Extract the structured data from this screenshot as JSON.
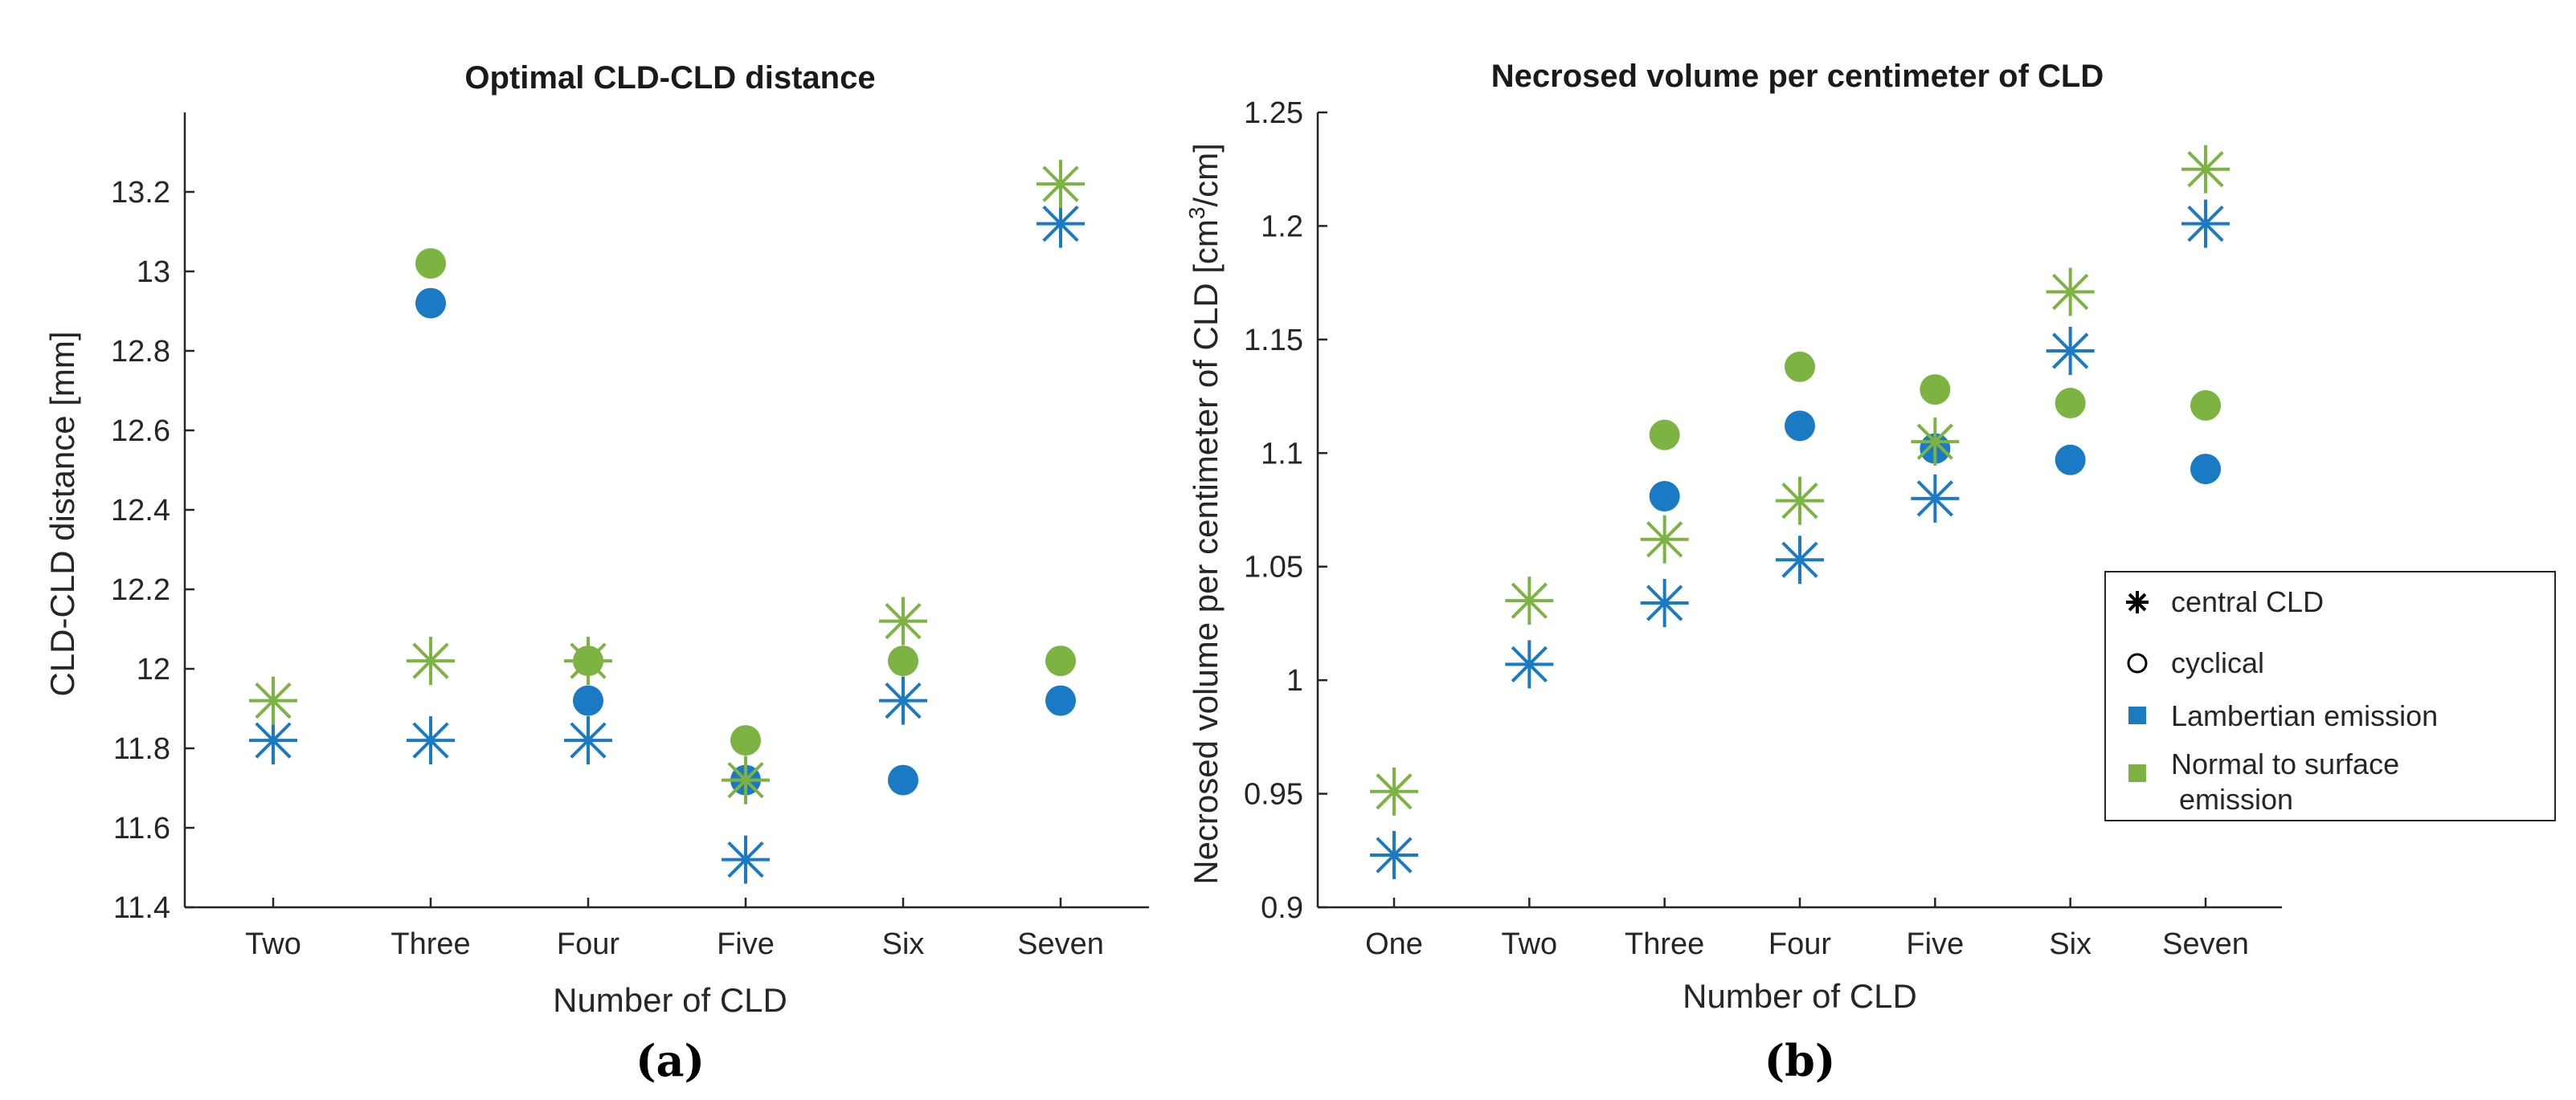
{
  "colors": {
    "lambertian": "#1a7ac4",
    "normal": "#7cb342",
    "axis": "#262626",
    "legend_marker": "#000000"
  },
  "chart_data": [
    {
      "type": "scatter",
      "panel_label": "(a)",
      "title": "Optimal CLD-CLD distance",
      "xlabel": "Number of CLD",
      "ylabel": "CLD-CLD distance [mm]",
      "categories": [
        "Two",
        "Three",
        "Four",
        "Five",
        "Six",
        "Seven"
      ],
      "ylim": [
        11.4,
        13.4
      ],
      "yticks": [
        11.4,
        11.6,
        11.8,
        12,
        12.2,
        12.4,
        12.6,
        12.8,
        13,
        13.2
      ],
      "series": [
        {
          "name": "Lambertian emission – central CLD",
          "color_key": "lambertian",
          "marker": "asterisk",
          "values": [
            11.82,
            11.82,
            11.82,
            11.52,
            11.92,
            13.12
          ]
        },
        {
          "name": "Lambertian emission – cyclical",
          "color_key": "lambertian",
          "marker": "circle",
          "values": [
            null,
            12.92,
            11.92,
            11.72,
            11.72,
            11.92
          ]
        },
        {
          "name": "Normal to surface emission – central CLD",
          "color_key": "normal",
          "marker": "asterisk",
          "values": [
            11.92,
            12.02,
            12.02,
            11.72,
            12.12,
            13.22
          ]
        },
        {
          "name": "Normal to surface emission – cyclical",
          "color_key": "normal",
          "marker": "circle",
          "values": [
            null,
            13.02,
            12.02,
            11.82,
            12.02,
            12.02
          ]
        }
      ]
    },
    {
      "type": "scatter",
      "panel_label": "(b)",
      "title": "Necrosed volume per centimeter of CLD",
      "xlabel": "Number of CLD",
      "ylabel_main": "Necrosed volume per centimeter of CLD [cm",
      "ylabel_sup": "3",
      "ylabel_end": "/cm]",
      "categories": [
        "One",
        "Two",
        "Three",
        "Four",
        "Five",
        "Six",
        "Seven"
      ],
      "ylim": [
        0.9,
        1.25
      ],
      "yticks": [
        0.9,
        0.95,
        1,
        1.05,
        1.1,
        1.15,
        1.2,
        1.25
      ],
      "series": [
        {
          "name": "Lambertian emission – central CLD",
          "color_key": "lambertian",
          "marker": "asterisk",
          "values": [
            0.923,
            1.007,
            1.034,
            1.053,
            1.08,
            1.145,
            1.201
          ]
        },
        {
          "name": "Lambertian emission – cyclical",
          "color_key": "lambertian",
          "marker": "circle",
          "values": [
            null,
            null,
            1.081,
            1.112,
            1.102,
            1.097,
            1.093
          ]
        },
        {
          "name": "Normal to surface emission – central CLD",
          "color_key": "normal",
          "marker": "asterisk",
          "values": [
            0.951,
            1.035,
            1.062,
            1.079,
            1.105,
            1.171,
            1.225
          ]
        },
        {
          "name": "Normal to surface emission – cyclical",
          "color_key": "normal",
          "marker": "circle",
          "values": [
            null,
            null,
            1.108,
            1.138,
            1.128,
            1.122,
            1.121
          ]
        }
      ],
      "legend": {
        "placement": "right",
        "entries": [
          {
            "label": "central CLD",
            "marker": "asterisk",
            "color_key": "legend_marker"
          },
          {
            "label": "cyclical",
            "marker": "open-circle",
            "color_key": "legend_marker"
          },
          {
            "label": "Lambertian emission",
            "marker": "square",
            "color_key": "lambertian"
          },
          {
            "label_line1": "Normal to surface",
            "label_line2": "emission",
            "marker": "square",
            "color_key": "normal"
          }
        ]
      }
    }
  ]
}
